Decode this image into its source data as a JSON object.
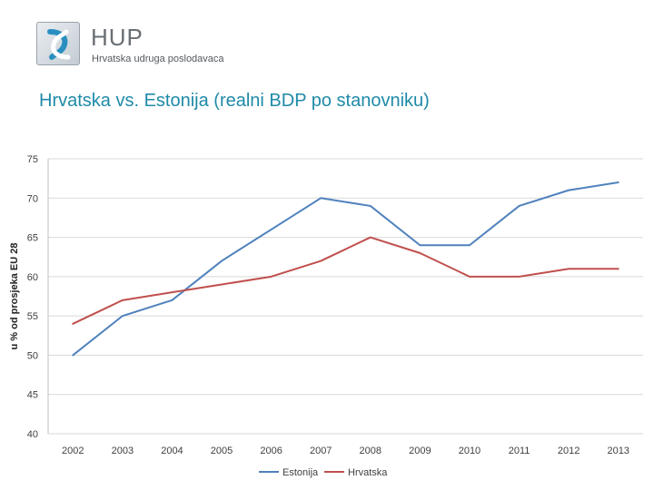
{
  "logo": {
    "name": "HUP",
    "subtitle": "Hrvatska udruga poslodavaca"
  },
  "slide": {
    "title": "Hrvatska vs. Estonija (realni BDP po stanovniku)"
  },
  "chart_data": {
    "type": "line",
    "title": "",
    "xlabel": "",
    "ylabel": "u % od prosjeka EU 28",
    "x": [
      "2002",
      "2003",
      "2004",
      "2005",
      "2006",
      "2007",
      "2008",
      "2009",
      "2010",
      "2011",
      "2012",
      "2013"
    ],
    "ylim": [
      40,
      75
    ],
    "yticks": [
      40,
      45,
      50,
      55,
      60,
      65,
      70,
      75
    ],
    "grid": true,
    "legend": "bottom",
    "series": [
      {
        "name": "Estonija",
        "color": "#4f81bd",
        "values": [
          50,
          55,
          57,
          62,
          66,
          70,
          69,
          64,
          64,
          69,
          71,
          72
        ]
      },
      {
        "name": "Hrvatska",
        "color": "#c0504d",
        "values": [
          54,
          57,
          58,
          59,
          60,
          62,
          65,
          63,
          60,
          60,
          61,
          61
        ]
      }
    ]
  }
}
